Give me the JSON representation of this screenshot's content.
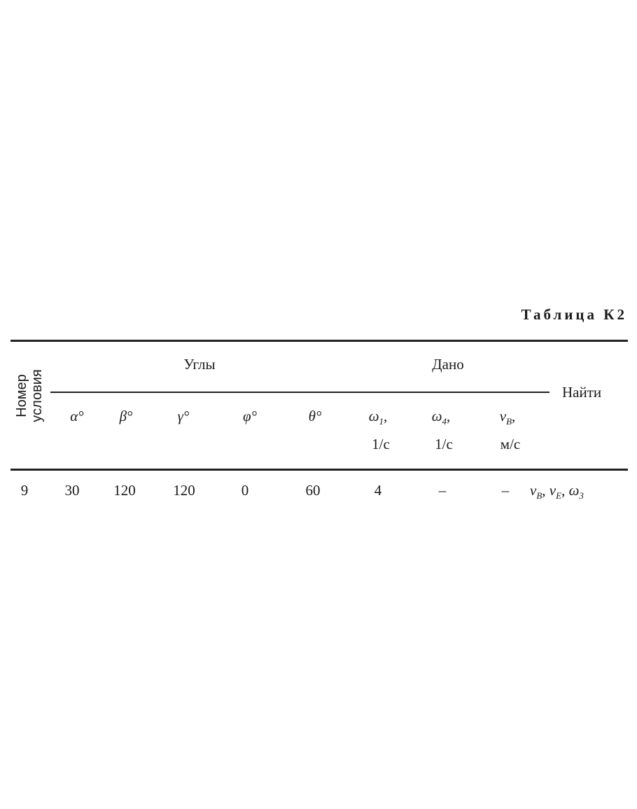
{
  "title": "Таблица К2",
  "header": {
    "number_line1": "Номер",
    "number_line2": "условия",
    "group_angles": "Углы",
    "group_given": "Дано",
    "find": "Найти",
    "columns": [
      {
        "symbol": "α°",
        "unit": ""
      },
      {
        "symbol": "β°",
        "unit": ""
      },
      {
        "symbol": "γ°",
        "unit": ""
      },
      {
        "symbol": "φ°",
        "unit": ""
      },
      {
        "symbol": "θ°",
        "unit": ""
      },
      {
        "symbol": "ω",
        "sub": "1",
        "suffix": ",",
        "unit": "1/c"
      },
      {
        "symbol": "ω",
        "sub": "4",
        "suffix": ",",
        "unit": "1/c"
      },
      {
        "symbol": "v",
        "sub": "B",
        "suffix": ",",
        "unit": "м/с"
      }
    ]
  },
  "rows": [
    {
      "number": "9",
      "values": [
        "30",
        "120",
        "120",
        "0",
        "60",
        "4",
        "–",
        "–"
      ],
      "find": [
        {
          "symbol": "v",
          "sub": "B",
          "suffix": ", "
        },
        {
          "symbol": "v",
          "sub": "E",
          "suffix": ", "
        },
        {
          "symbol": "ω",
          "sub": "3",
          "suffix": ""
        }
      ]
    }
  ]
}
